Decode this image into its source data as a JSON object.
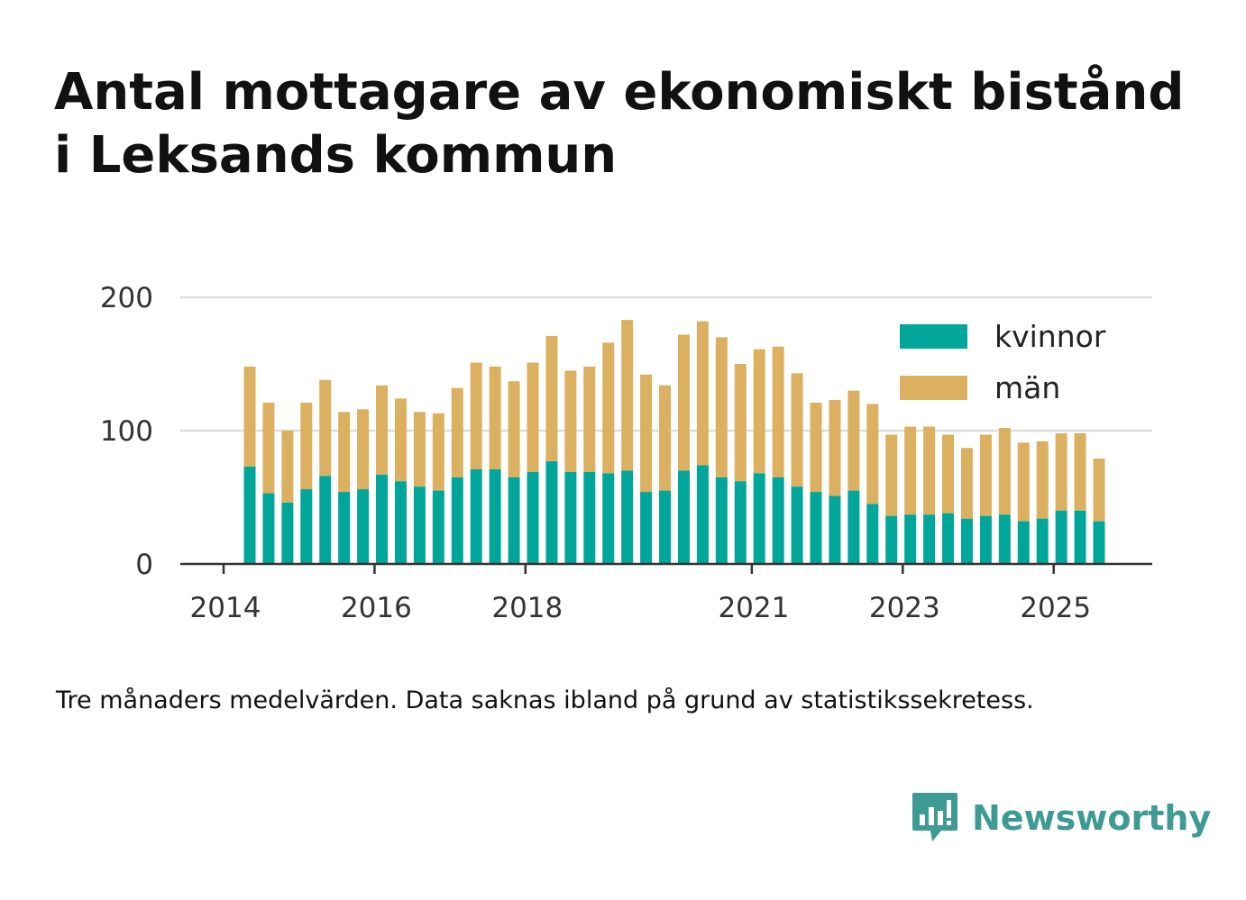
{
  "title": "Antal mottagare av ekonomiskt bistånd i Leksands kommun",
  "footnote": "Tre månaders medelvärden. Data saknas ibland på grund av statistikssekretess.",
  "brand": {
    "name": "Newsworthy",
    "icon": "newsworthy-bar-chart-icon",
    "color": "#3e9b93"
  },
  "colors": {
    "kvinnor": "#00a699",
    "man": "#dbb060",
    "grid": "#dddddd",
    "axis": "#333333",
    "text": "#333333"
  },
  "chart_data": {
    "type": "bar",
    "stacked": true,
    "title": "Antal mottagare av ekonomiskt bistånd i Leksands kommun",
    "xlabel": "",
    "ylabel": "",
    "ylim": [
      0,
      200
    ],
    "yticks": [
      0,
      100,
      200
    ],
    "grid": true,
    "legend_position": "top-right",
    "x_start_year": 2014,
    "x_end_year": 2025.8,
    "xticks": [
      "2014",
      "2016",
      "2018",
      "2021",
      "2023",
      "2025"
    ],
    "categories": [
      "2014 Q2",
      "2014 Q3",
      "2014 Q4",
      "2015 Q1",
      "2015 Q2",
      "2015 Q3",
      "2015 Q4",
      "2016 Q1",
      "2016 Q2",
      "2016 Q3",
      "2016 Q4",
      "2017 Q1",
      "2017 Q2",
      "2017 Q3",
      "2017 Q4",
      "2018 Q1",
      "2018 Q2",
      "2018 Q3",
      "2018 Q4",
      "2019 Q1",
      "2019 Q2",
      "2019 Q3",
      "2019 Q4",
      "2020 Q1",
      "2020 Q2",
      "2020 Q3",
      "2020 Q4",
      "2021 Q1",
      "2021 Q2",
      "2021 Q3",
      "2021 Q4",
      "2022 Q1",
      "2022 Q2",
      "2022 Q3",
      "2022 Q4",
      "2023 Q1",
      "2023 Q2",
      "2023 Q3",
      "2023 Q4",
      "2024 Q1",
      "2024 Q2",
      "2024 Q3",
      "2024 Q4",
      "2025 Q1",
      "2025 Q2",
      "2025 Q3"
    ],
    "series": [
      {
        "name": "kvinnor",
        "values": [
          73,
          53,
          46,
          56,
          66,
          54,
          56,
          67,
          62,
          58,
          55,
          65,
          71,
          71,
          65,
          69,
          77,
          69,
          69,
          68,
          70,
          54,
          55,
          70,
          74,
          65,
          62,
          68,
          65,
          58,
          54,
          51,
          55,
          45,
          36,
          37,
          37,
          38,
          34,
          36,
          37,
          32,
          34,
          40,
          40,
          32
        ]
      },
      {
        "name": "män",
        "values": [
          75,
          68,
          54,
          65,
          72,
          60,
          60,
          67,
          62,
          56,
          58,
          67,
          80,
          77,
          72,
          82,
          94,
          76,
          79,
          98,
          113,
          88,
          79,
          102,
          108,
          105,
          88,
          93,
          98,
          85,
          67,
          72,
          75,
          75,
          61,
          66,
          66,
          59,
          53,
          61,
          65,
          59,
          58,
          58,
          58,
          47
        ]
      }
    ]
  }
}
